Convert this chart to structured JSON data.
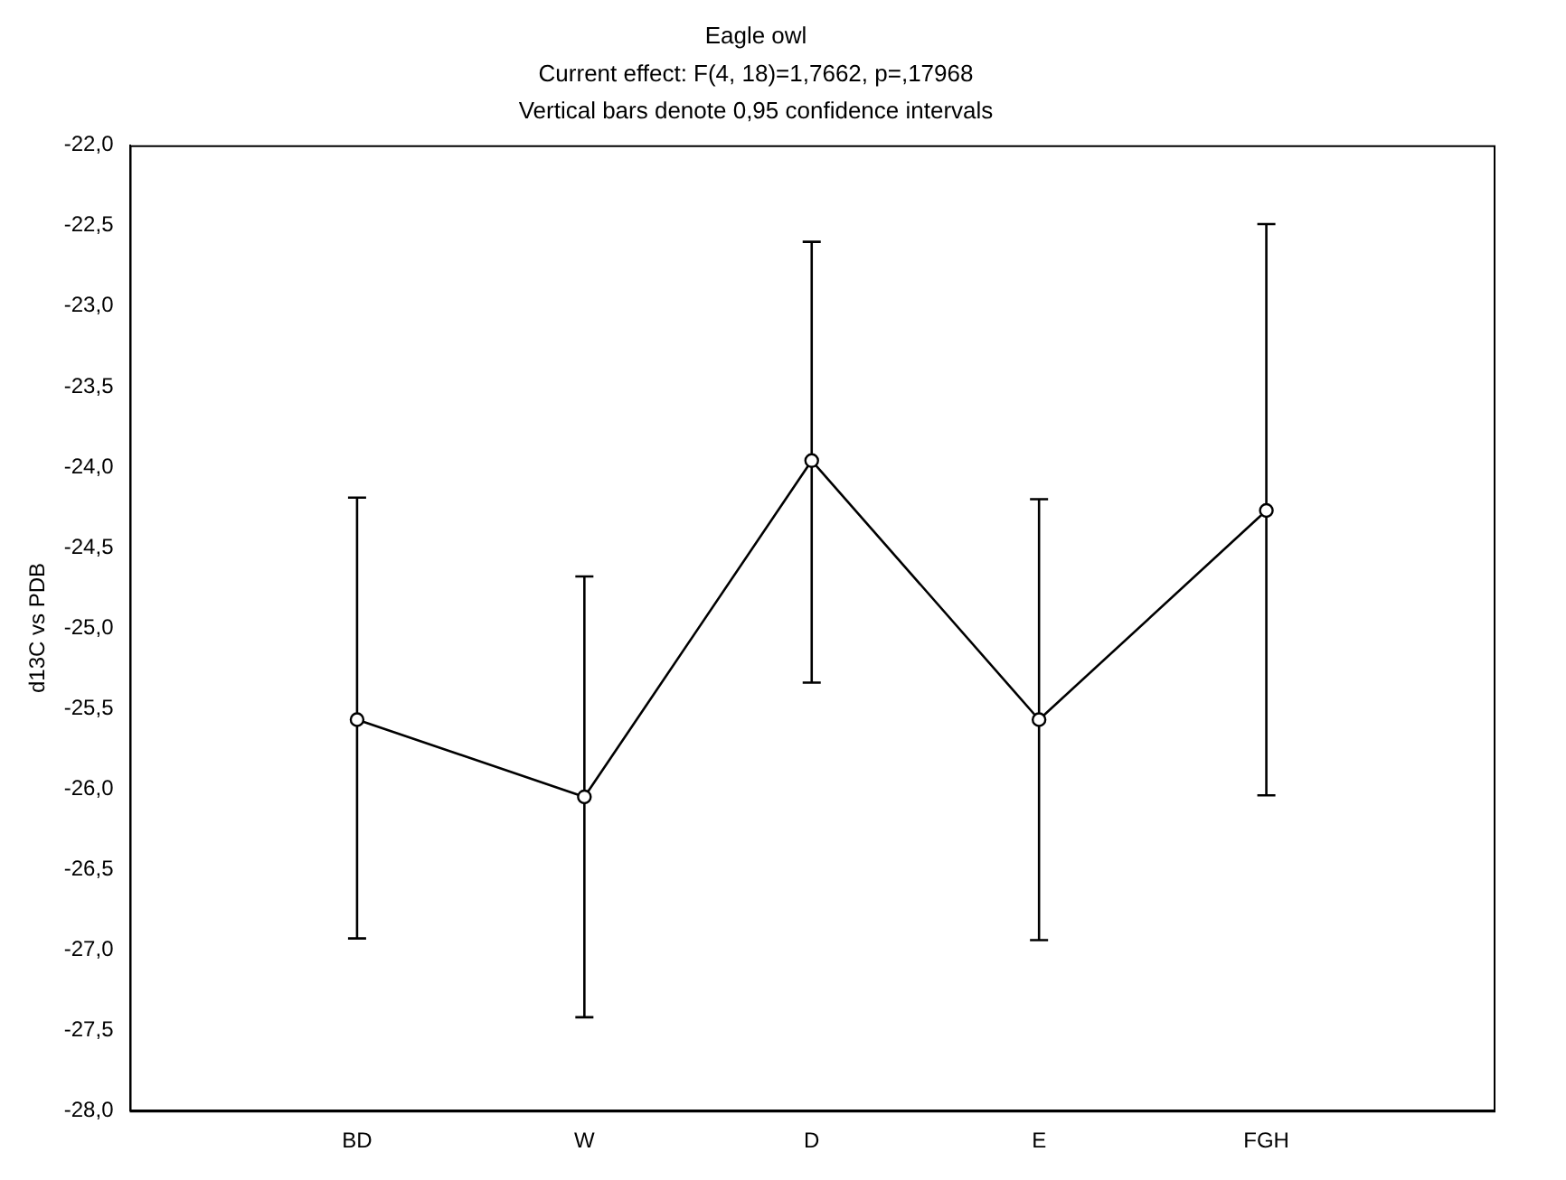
{
  "chart_data": {
    "type": "line",
    "title": "Eagle owl",
    "subtitle": "Current effect: F(4, 18)=1,7662, p=,17968",
    "annotations": [
      "Vertical bars denote 0,95 confidence intervals"
    ],
    "ylabel": "d13C vs PDB",
    "categories": [
      "BD",
      "W",
      "D",
      "E",
      "FGH"
    ],
    "series": [
      {
        "color": "#000000",
        "values": [
          -25.57,
          -26.05,
          -23.96,
          -25.57,
          -24.27
        ],
        "errors": [
          [
            -26.93,
            -24.19
          ],
          [
            -27.42,
            -24.68
          ],
          [
            -25.34,
            -22.6
          ],
          [
            -26.94,
            -24.2
          ],
          [
            -26.04,
            -22.49
          ]
        ]
      }
    ],
    "ylim": [
      -28,
      -22
    ],
    "yticks": [
      {
        "value": -28,
        "label": "-28,0"
      },
      {
        "value": -27.5,
        "label": "-27,5"
      },
      {
        "value": -27,
        "label": "-27,0"
      },
      {
        "value": -26.5,
        "label": "-26,5"
      },
      {
        "value": -26,
        "label": "-26,0"
      },
      {
        "value": -25.5,
        "label": "-25,5"
      },
      {
        "value": -25,
        "label": "-25,0"
      },
      {
        "value": -24.5,
        "label": "-24,5"
      },
      {
        "value": -24,
        "label": "-24,0"
      },
      {
        "value": -23.5,
        "label": "-23,5"
      },
      {
        "value": -23,
        "label": "-23,0"
      },
      {
        "value": -22.5,
        "label": "-22,5"
      },
      {
        "value": -22,
        "label": "-22,0"
      }
    ],
    "grid": false,
    "legend": false,
    "marker": "circle",
    "line_style": "solid"
  }
}
